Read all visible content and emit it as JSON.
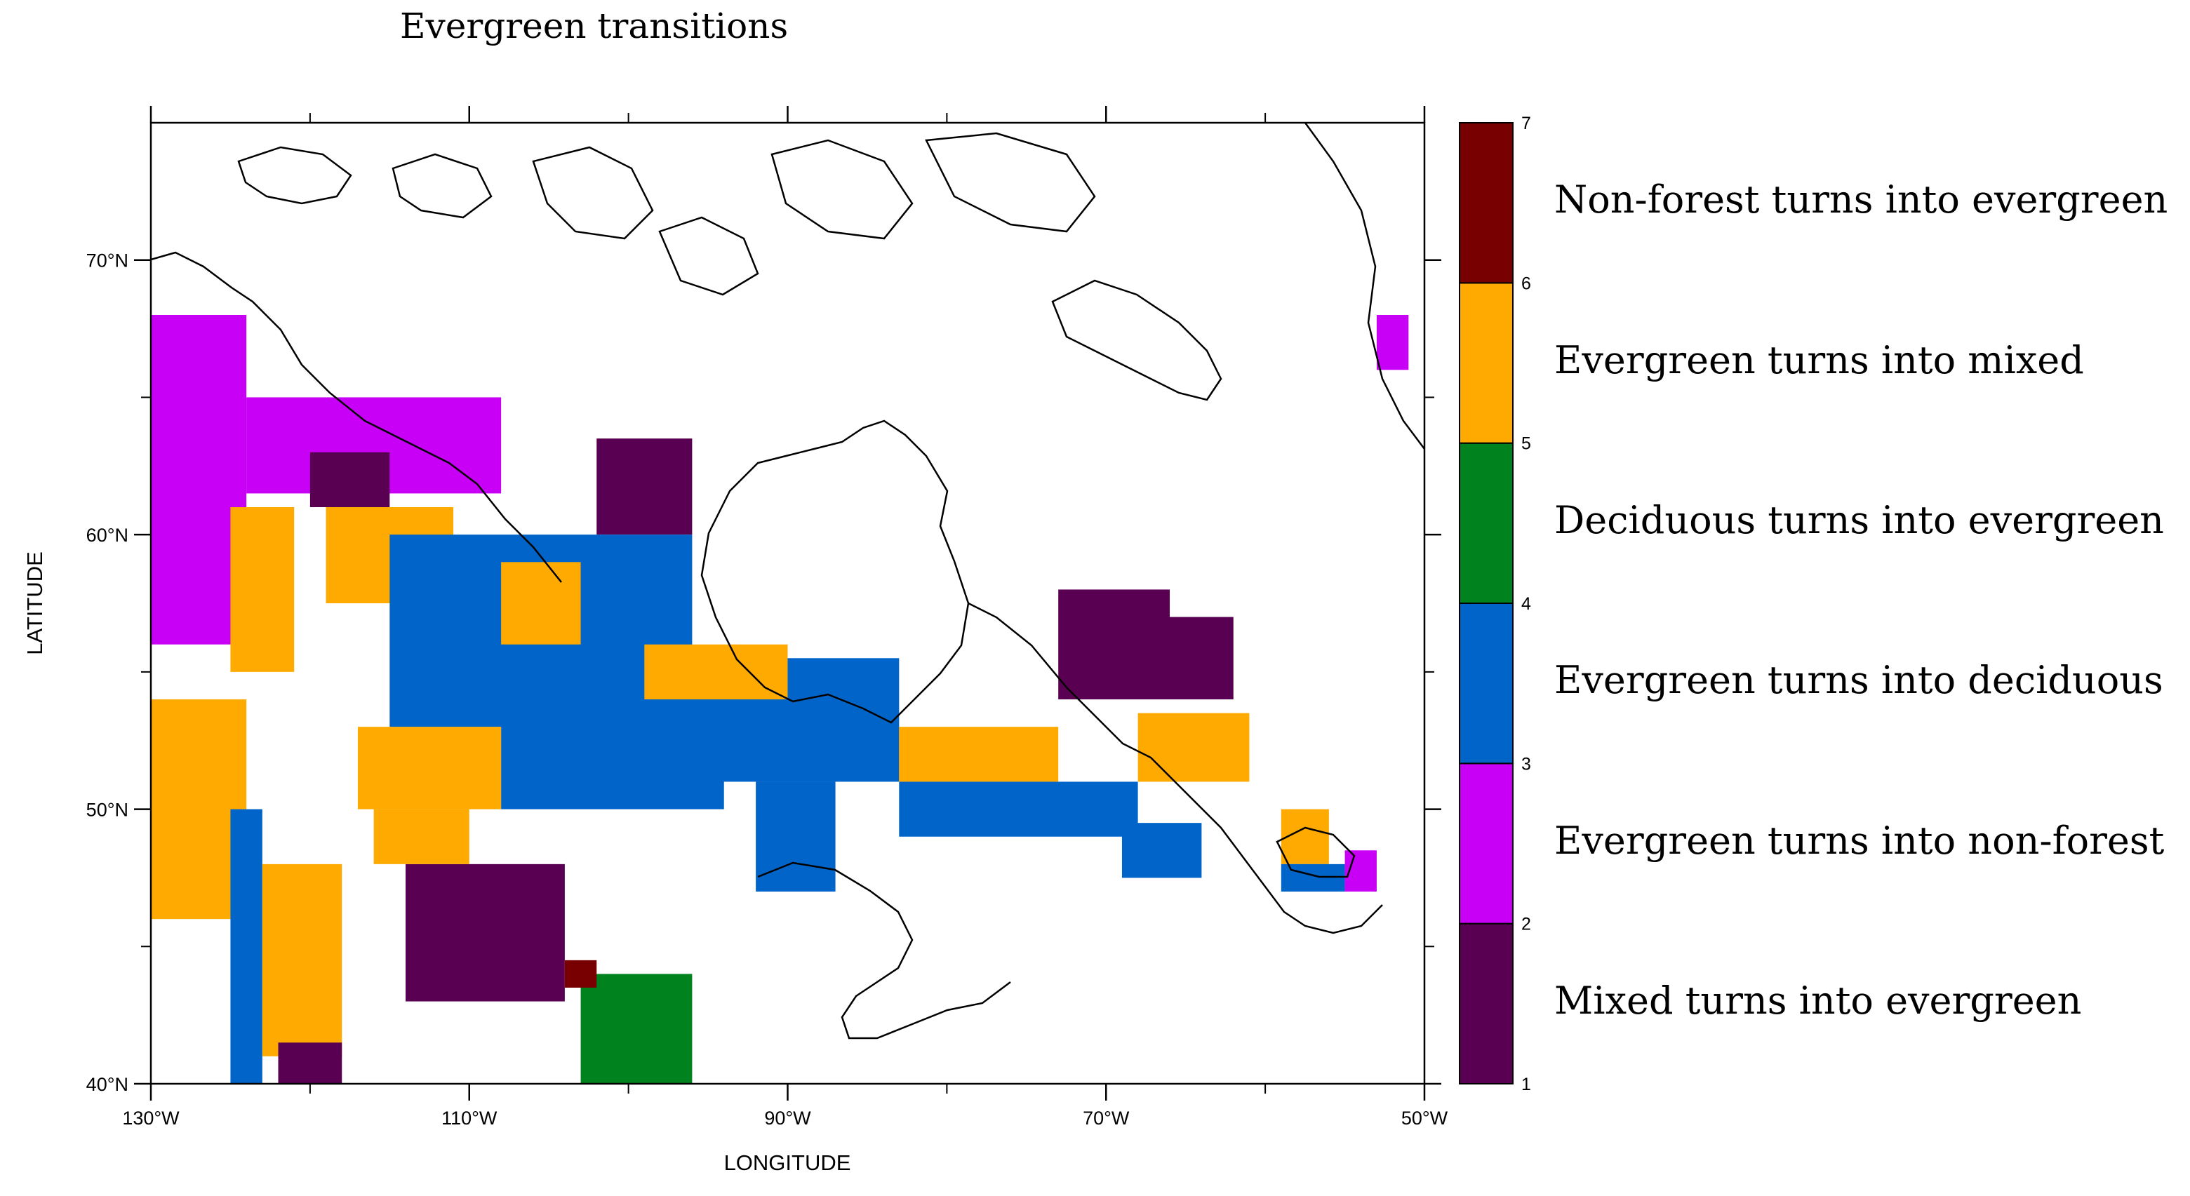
{
  "title": "Evergreen transitions",
  "axes": {
    "xlabel": "LONGITUDE",
    "ylabel": "LATITUDE",
    "xlim": [
      -130,
      -50
    ],
    "ylim": [
      40,
      75
    ],
    "xticks": [
      {
        "value": -130,
        "label": "130°W"
      },
      {
        "value": -110,
        "label": "110°W"
      },
      {
        "value": -90,
        "label": "90°W"
      },
      {
        "value": -70,
        "label": "70°W"
      },
      {
        "value": -50,
        "label": "50°W"
      }
    ],
    "xminor": [
      -120,
      -100,
      -80,
      -60
    ],
    "yticks": [
      {
        "value": 40,
        "label": "40°N"
      },
      {
        "value": 50,
        "label": "50°N"
      },
      {
        "value": 60,
        "label": "60°N"
      },
      {
        "value": 70,
        "label": "70°N"
      }
    ],
    "yminor": [
      45,
      55,
      65
    ]
  },
  "colorbar": {
    "ticks": [
      "1",
      "2",
      "3",
      "4",
      "5",
      "6",
      "7"
    ],
    "classes": [
      {
        "code": 1,
        "label": "Mixed turns into evergreen",
        "color": "#5a0052"
      },
      {
        "code": 2,
        "label": "Evergreen turns into non-forest",
        "color": "#c800f5"
      },
      {
        "code": 3,
        "label": "Evergreen turns into deciduous",
        "color": "#0064c8"
      },
      {
        "code": 4,
        "label": "Deciduous turns into evergreen",
        "color": "#00821e"
      },
      {
        "code": 5,
        "label": "Evergreen turns into mixed",
        "color": "#ffaa00"
      },
      {
        "code": 6,
        "label": "Non-forest turns into evergreen",
        "color": "#780000"
      }
    ]
  },
  "chart_data": {
    "type": "heatmap",
    "projection": "lon-lat",
    "x_units": "degrees longitude",
    "y_units": "degrees latitude",
    "regions": [
      {
        "class": 2,
        "lon": [
          -130,
          -124
        ],
        "lat": [
          56,
          68
        ]
      },
      {
        "class": 2,
        "lon": [
          -124,
          -108
        ],
        "lat": [
          61.5,
          65
        ]
      },
      {
        "class": 5,
        "lon": [
          -125,
          -121
        ],
        "lat": [
          55,
          61
        ]
      },
      {
        "class": 5,
        "lon": [
          -119,
          -111
        ],
        "lat": [
          57.5,
          61
        ]
      },
      {
        "class": 1,
        "lon": [
          -120,
          -115
        ],
        "lat": [
          61,
          63
        ]
      },
      {
        "class": 1,
        "lon": [
          -102,
          -96
        ],
        "lat": [
          60,
          63.5
        ]
      },
      {
        "class": 3,
        "lon": [
          -115,
          -96
        ],
        "lat": [
          53,
          60
        ]
      },
      {
        "class": 5,
        "lon": [
          -108,
          -103
        ],
        "lat": [
          56,
          59
        ]
      },
      {
        "class": 3,
        "lon": [
          -108,
          -94
        ],
        "lat": [
          50,
          54
        ]
      },
      {
        "class": 3,
        "lon": [
          -96,
          -83
        ],
        "lat": [
          51,
          55.5
        ]
      },
      {
        "class": 3,
        "lon": [
          -92,
          -87
        ],
        "lat": [
          47,
          51
        ]
      },
      {
        "class": 5,
        "lon": [
          -117,
          -108
        ],
        "lat": [
          50,
          53
        ]
      },
      {
        "class": 5,
        "lon": [
          -99,
          -90
        ],
        "lat": [
          54,
          56
        ]
      },
      {
        "class": 5,
        "lon": [
          -83,
          -73
        ],
        "lat": [
          51,
          53
        ]
      },
      {
        "class": 3,
        "lon": [
          -83,
          -68
        ],
        "lat": [
          49,
          51
        ]
      },
      {
        "class": 3,
        "lon": [
          -69,
          -64
        ],
        "lat": [
          47.5,
          49.5
        ]
      },
      {
        "class": 1,
        "lon": [
          -73,
          -66
        ],
        "lat": [
          54,
          58
        ]
      },
      {
        "class": 1,
        "lon": [
          -66,
          -62
        ],
        "lat": [
          54,
          57
        ]
      },
      {
        "class": 5,
        "lon": [
          -68,
          -61
        ],
        "lat": [
          51,
          53.5
        ]
      },
      {
        "class": 5,
        "lon": [
          -59,
          -56
        ],
        "lat": [
          48,
          50
        ]
      },
      {
        "class": 3,
        "lon": [
          -59,
          -55
        ],
        "lat": [
          47,
          48
        ]
      },
      {
        "class": 2,
        "lon": [
          -55,
          -53
        ],
        "lat": [
          47,
          48.5
        ]
      },
      {
        "class": 2,
        "lon": [
          -53,
          -51
        ],
        "lat": [
          66,
          68
        ]
      },
      {
        "class": 5,
        "lon": [
          -130,
          -124
        ],
        "lat": [
          46,
          54
        ]
      },
      {
        "class": 3,
        "lon": [
          -125,
          -123
        ],
        "lat": [
          40,
          50
        ]
      },
      {
        "class": 5,
        "lon": [
          -123,
          -118
        ],
        "lat": [
          41,
          48
        ]
      },
      {
        "class": 1,
        "lon": [
          -122,
          -118
        ],
        "lat": [
          40,
          41.5
        ]
      },
      {
        "class": 1,
        "lon": [
          -114,
          -104
        ],
        "lat": [
          43,
          48
        ]
      },
      {
        "class": 5,
        "lon": [
          -116,
          -110
        ],
        "lat": [
          48,
          50
        ]
      },
      {
        "class": 4,
        "lon": [
          -103,
          -96
        ],
        "lat": [
          40,
          44
        ]
      },
      {
        "class": 6,
        "lon": [
          -104,
          -102
        ],
        "lat": [
          43.5,
          44.5
        ]
      }
    ]
  }
}
